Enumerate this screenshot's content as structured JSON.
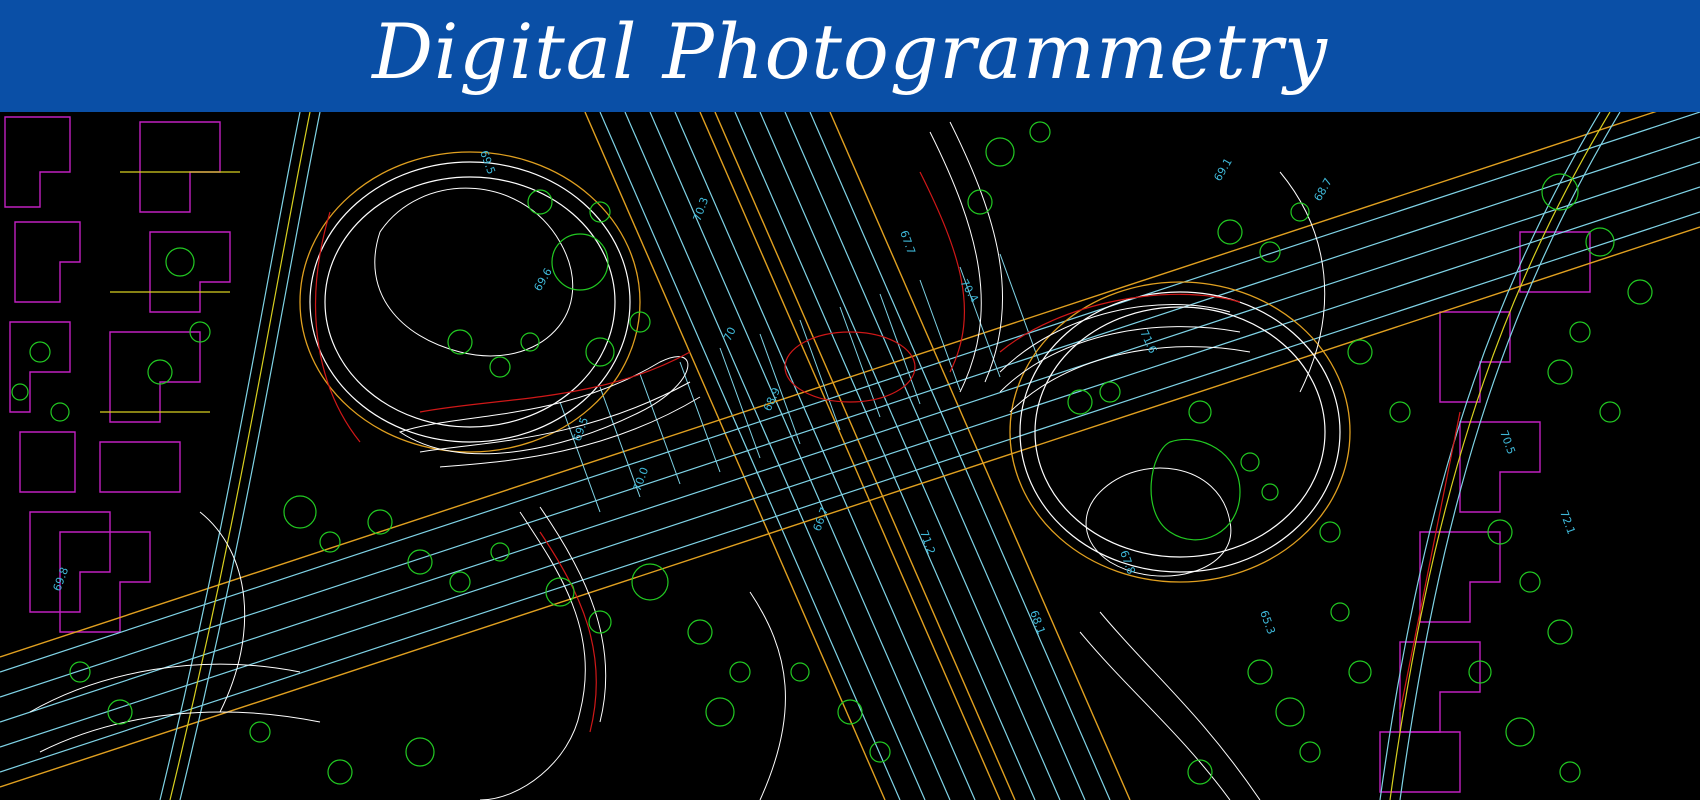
{
  "banner": {
    "title": "Digital Photogrammetry",
    "background_color": "#0a4fa6",
    "text_color": "#ffffff"
  },
  "map": {
    "description_colors": {
      "background": "#000000",
      "contours": "#ffffff",
      "roads": "#7fd3e6",
      "road_edges": "#e0a020",
      "vegetation": "#22c922",
      "buildings": "#c020c0",
      "index_contours": "#d01818",
      "labels": "#3fb8d8"
    },
    "spot_elevations": [
      "69.6",
      "69.5",
      "70.3",
      "70",
      "68.9",
      "67.7",
      "70.4",
      "71.6",
      "69.1",
      "68.7",
      "69.5",
      "70.0",
      "66.7",
      "71.2",
      "68.1",
      "67.8",
      "65.3",
      "70.5",
      "72.1",
      "69.8"
    ]
  }
}
